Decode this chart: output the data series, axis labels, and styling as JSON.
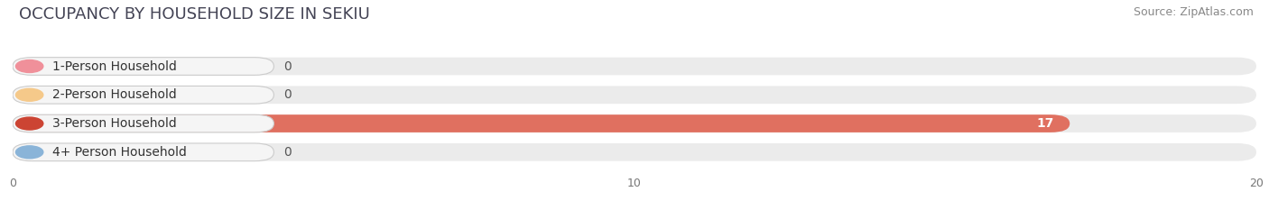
{
  "title": "OCCUPANCY BY HOUSEHOLD SIZE IN SEKIU",
  "source": "Source: ZipAtlas.com",
  "categories": [
    "1-Person Household",
    "2-Person Household",
    "3-Person Household",
    "4+ Person Household"
  ],
  "values": [
    0,
    0,
    17,
    0
  ],
  "bar_colors": [
    "#f0909a",
    "#f5c98a",
    "#e07060",
    "#a8c8e8"
  ],
  "circle_colors": [
    "#f0909a",
    "#f5c98a",
    "#cc4433",
    "#8ab4d8"
  ],
  "label_bg_color": "#f5f5f5",
  "xlim": [
    0,
    20
  ],
  "xticks": [
    0,
    10,
    20
  ],
  "background_color": "#ffffff",
  "bar_background_color": "#ebebeb",
  "title_fontsize": 13,
  "source_fontsize": 9,
  "label_fontsize": 10,
  "value_fontsize": 10
}
